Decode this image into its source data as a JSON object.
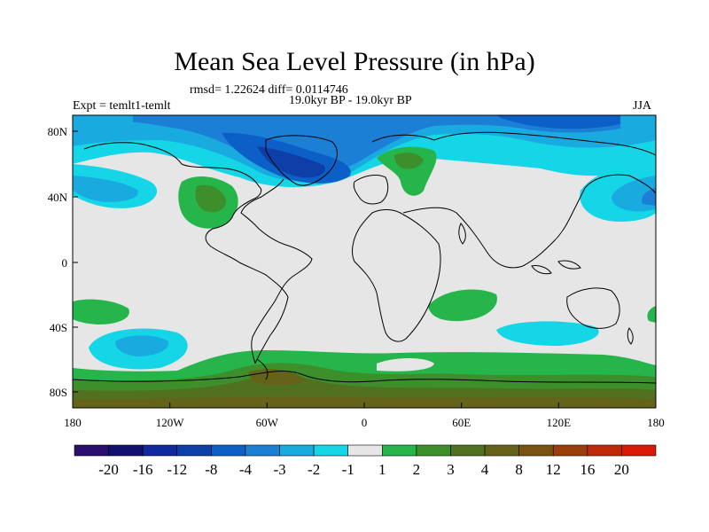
{
  "title": "Mean Sea Level Pressure (in hPa)",
  "stats": "rmsd= 1.22624 diff= 0.0114746",
  "expt": "Expt = temlt1-temlt",
  "period": "19.0kyr BP - 19.0kyr BP",
  "season": "JJA",
  "lat_labels": [
    "80N",
    "40N",
    "0",
    "40S",
    "80S"
  ],
  "lon_labels": [
    "180",
    "120W",
    "60W",
    "0",
    "60E",
    "120E",
    "180"
  ],
  "colorbar": {
    "colors": [
      "#2a0e6e",
      "#10106e",
      "#10299e",
      "#0e3fa8",
      "#0b5fc6",
      "#1b7fd6",
      "#19abe0",
      "#14d6e6",
      "#e6e6e6",
      "#26b54a",
      "#3c8f2a",
      "#517020",
      "#65621a",
      "#7a5212",
      "#9a3e0c",
      "#c02a08",
      "#d91a06"
    ],
    "labels": [
      "-20",
      "-16",
      "-12",
      "-8",
      "-4",
      "-3",
      "-2",
      "-1",
      "1",
      "2",
      "3",
      "4",
      "8",
      "12",
      "16",
      "20"
    ]
  },
  "colors": {
    "background_field": "#e6e6e6",
    "frame": "#000000"
  }
}
